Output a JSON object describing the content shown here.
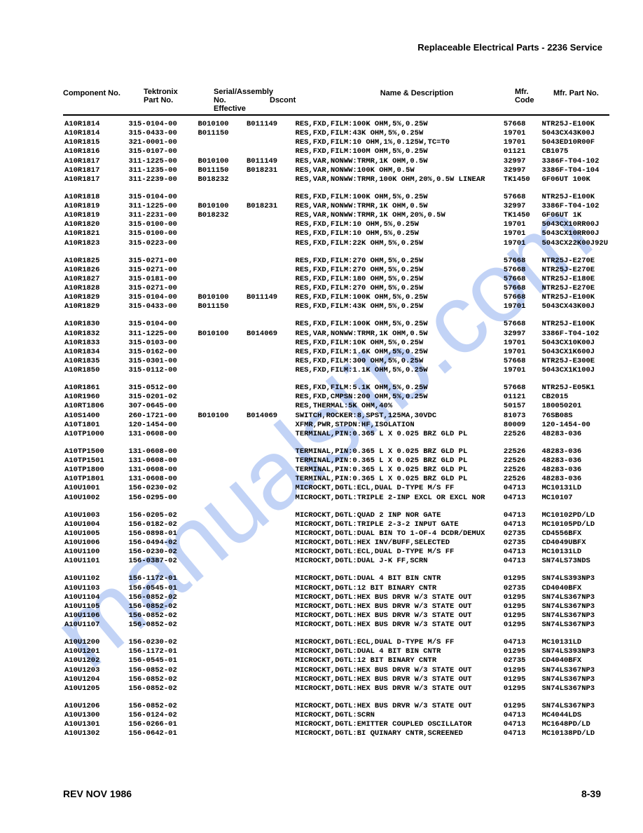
{
  "header": {
    "title": "Replaceable Electrical Parts - 2236 Service"
  },
  "columns": {
    "c1": "Component No.",
    "c2a": "Tektronix",
    "c2b": "Part No.",
    "c3a": "Serial/Assembly No.",
    "c3b": "Effective",
    "c4b": "Dscont",
    "c5": "Name & Description",
    "c6a": "Mfr.",
    "c6b": "Code",
    "c7": "Mfr. Part No."
  },
  "groups": [
    [
      [
        "A10R1814",
        "315-0104-00",
        "B010100",
        "B011149",
        "RES,FXD,FILM:100K OHM,5%,0.25W",
        "57668",
        "NTR25J-E100K"
      ],
      [
        "A10R1814",
        "315-0433-00",
        "B011150",
        "",
        "RES,FXD,FILM:43K OHM,5%,0.25W",
        "19701",
        "5043CX43K00J"
      ],
      [
        "A10R1815",
        "321-0001-00",
        "",
        "",
        "RES,FXD,FILM:10 OHM,1%,0.125W,TC=T0",
        "19701",
        "5043ED10R00F"
      ],
      [
        "A10R1816",
        "315-0107-00",
        "",
        "",
        "RES,FXD,FILM:100M OHM,5%,0.25W",
        "01121",
        "CB1075"
      ],
      [
        "A10R1817",
        "311-1225-00",
        "B010100",
        "B011149",
        "RES,VAR,NONWW:TRMR,1K OHM,0.5W",
        "32997",
        "3386F-T04-102"
      ],
      [
        "A10R1817",
        "311-1235-00",
        "B011150",
        "B018231",
        "RES,VAR,NONWW:100K OHM,0.5W",
        "32997",
        "3386F-T04-104"
      ],
      [
        "A10R1817",
        "311-2239-00",
        "B018232",
        "",
        "RES,VAR,NONWW:TRMR,100K OHM,20%,0.5W LINEAR",
        "TK1450",
        "GF06UT 100K"
      ]
    ],
    [
      [
        "A10R1818",
        "315-0104-00",
        "",
        "",
        "RES,FXD,FILM:100K OHM,5%,0.25W",
        "57668",
        "NTR25J-E100K"
      ],
      [
        "A10R1819",
        "311-1225-00",
        "B010100",
        "B018231",
        "RES,VAR,NONWW:TRMR,1K OHM,0.5W",
        "32997",
        "3386F-T04-102"
      ],
      [
        "A10R1819",
        "311-2231-00",
        "B018232",
        "",
        "RES,VAR,NONWW:TRMR,1K OHM,20%,0.5W",
        "TK1450",
        "GF06UT 1K"
      ],
      [
        "A10R1820",
        "315-0100-00",
        "",
        "",
        "RES,FXD,FILM:10 OHM,5%,0.25W",
        "19701",
        "5043CX10RR00J"
      ],
      [
        "A10R1821",
        "315-0100-00",
        "",
        "",
        "RES,FXD,FILM:10 OHM,5%,0.25W",
        "19701",
        "5043CX10RR00J"
      ],
      [
        "A10R1823",
        "315-0223-00",
        "",
        "",
        "RES,FXD,FILM:22K OHM,5%,0.25W",
        "19701",
        "5043CX22K00J92U"
      ]
    ],
    [
      [
        "A10R1825",
        "315-0271-00",
        "",
        "",
        "RES,FXD,FILM:270 OHM,5%,0.25W",
        "57668",
        "NTR25J-E270E"
      ],
      [
        "A10R1826",
        "315-0271-00",
        "",
        "",
        "RES,FXD,FILM:270 OHM,5%,0.25W",
        "57668",
        "NTR25J-E270E"
      ],
      [
        "A10R1827",
        "315-0181-00",
        "",
        "",
        "RES,FXD,FILM:180 OHM,5%,0.25W",
        "57668",
        "NTR25J-E180E"
      ],
      [
        "A10R1828",
        "315-0271-00",
        "",
        "",
        "RES,FXD,FILM:270 OHM,5%,0.25W",
        "57668",
        "NTR25J-E270E"
      ],
      [
        "A10R1829",
        "315-0104-00",
        "B010100",
        "B011149",
        "RES,FXD,FILM:100K OHM,5%,0.25W",
        "57668",
        "NTR25J-E100K"
      ],
      [
        "A10R1829",
        "315-0433-00",
        "B011150",
        "",
        "RES,FXD,FILM:43K OHM,5%,0.25W",
        "19701",
        "5043CX43K00J"
      ]
    ],
    [
      [
        "A10R1830",
        "315-0104-00",
        "",
        "",
        "RES,FXD,FILM:100K OHM,5%,0.25W",
        "57668",
        "NTR25J-E100K"
      ],
      [
        "A10R1832",
        "311-1225-00",
        "B010100",
        "B014069",
        "RES,VAR,NONWW:TRMR,1K OHM,0.5W",
        "32997",
        "3386F-T04-102"
      ],
      [
        "A10R1833",
        "315-0103-00",
        "",
        "",
        "RES,FXD,FILM:10K OHM,5%,0.25W",
        "19701",
        "5043CX10K00J"
      ],
      [
        "A10R1834",
        "315-0162-00",
        "",
        "",
        "RES,FXD,FILM:1.6K OHM,5%,0.25W",
        "19701",
        "5043CX1K600J"
      ],
      [
        "A10R1835",
        "315-0301-00",
        "",
        "",
        "RES,FXD,FILM:300 OHM,5%,0.25W",
        "57668",
        "NTR25J-E300E"
      ],
      [
        "A10R1850",
        "315-0112-00",
        "",
        "",
        "RES,FXD,FILM:1.1K OHM,5%,0.25W",
        "19701",
        "5043CX1K100J"
      ]
    ],
    [
      [
        "A10R1861",
        "315-0512-00",
        "",
        "",
        "RES,FXD,FILM:5.1K OHM,5%,0.25W",
        "57668",
        "NTR25J-E05K1"
      ],
      [
        "A10R1960",
        "315-0201-02",
        "",
        "",
        "RES,FXD,CMPSN:200 OHM,5%,0.25W",
        "01121",
        "CB2015"
      ],
      [
        "A10RT1806",
        "307-0645-00",
        "",
        "",
        "RES,THERMAL:5K OHM,40%",
        "50157",
        "180050201"
      ],
      [
        "A10S1400",
        "260-1721-00",
        "B010100",
        "B014069",
        "SWITCH,ROCKER:8,SPST,125MA,30VDC",
        "81073",
        "76SB08S"
      ],
      [
        "A10T1801",
        "120-1454-00",
        "",
        "",
        "XFMR,PWR,STPDN:HF,ISOLATION",
        "80009",
        "120-1454-00"
      ],
      [
        "A10TP1000",
        "131-0608-00",
        "",
        "",
        "TERMINAL,PIN:0.365 L X 0.025 BRZ GLD PL",
        "22526",
        "48283-036"
      ]
    ],
    [
      [
        "A10TP1500",
        "131-0608-00",
        "",
        "",
        "TERMINAL,PIN:0.365 L X 0.025 BRZ GLD PL",
        "22526",
        "48283-036"
      ],
      [
        "A10TP1501",
        "131-0608-00",
        "",
        "",
        "TERMINAL,PIN:0.365 L X 0.025 BRZ GLD PL",
        "22526",
        "48283-036"
      ],
      [
        "A10TP1800",
        "131-0608-00",
        "",
        "",
        "TERMINAL,PIN:0.365 L X 0.025 BRZ GLD PL",
        "22526",
        "48283-036"
      ],
      [
        "A10TP1801",
        "131-0608-00",
        "",
        "",
        "TERMINAL,PIN:0.365 L X 0.025 BRZ GLD PL",
        "22526",
        "48283-036"
      ],
      [
        "A10U1001",
        "156-0230-02",
        "",
        "",
        "MICROCKT,DGTL:ECL,DUAL D-TYPE M/S FF",
        "04713",
        "MC10131LD"
      ],
      [
        "A10U1002",
        "156-0295-00",
        "",
        "",
        "MICROCKT,DGTL:TRIPLE 2-INP EXCL OR EXCL NOR",
        "04713",
        "MC10107"
      ]
    ],
    [
      [
        "A10U1003",
        "156-0205-02",
        "",
        "",
        "MICROCKT,DGTL:QUAD 2 INP NOR GATE",
        "04713",
        "MC10102PD/LD"
      ],
      [
        "A10U1004",
        "156-0182-02",
        "",
        "",
        "MICROCKT,DGTL:TRIPLE 2-3-2 INPUT GATE",
        "04713",
        "MC10105PD/LD"
      ],
      [
        "A10U1005",
        "156-0898-01",
        "",
        "",
        "MICROCKT,DGTL:DUAL BIN TO 1-OF-4 DCDR/DEMUX",
        "02735",
        "CD4556BFX"
      ],
      [
        "A10U1006",
        "156-0494-02",
        "",
        "",
        "MICROCKT,DGTL:HEX INV/BUFF,SELECTED",
        "02735",
        "CD4049UBFX"
      ],
      [
        "A10U1100",
        "156-0230-02",
        "",
        "",
        "MICROCKT,DGTL:ECL,DUAL D-TYPE M/S FF",
        "04713",
        "MC10131LD"
      ],
      [
        "A10U1101",
        "156-0387-02",
        "",
        "",
        "MICROCKT,DGTL:DUAL J-K FF,SCRN",
        "04713",
        "SN74LS73NDS"
      ]
    ],
    [
      [
        "A10U1102",
        "156-1172-01",
        "",
        "",
        "MICROCKT,DGTL:DUAL 4 BIT BIN CNTR",
        "01295",
        "SN74LS393NP3"
      ],
      [
        "A10U1103",
        "156-0545-01",
        "",
        "",
        "MICROCKT,DGTL:12 BIT BINARY CNTR",
        "02735",
        "CD4040BFX"
      ],
      [
        "A10U1104",
        "156-0852-02",
        "",
        "",
        "MICROCKT,DGTL:HEX BUS DRVR W/3 STATE OUT",
        "01295",
        "SN74LS367NP3"
      ],
      [
        "A10U1105",
        "156-0852-02",
        "",
        "",
        "MICROCKT,DGTL:HEX BUS DRVR W/3 STATE OUT",
        "01295",
        "SN74LS367NP3"
      ],
      [
        "A10U1106",
        "156-0852-02",
        "",
        "",
        "MICROCKT,DGTL:HEX BUS DRVR W/3 STATE OUT",
        "01295",
        "SN74LS367NP3"
      ],
      [
        "A10U1107",
        "156-0852-02",
        "",
        "",
        "MICROCKT,DGTL:HEX BUS DRVR W/3 STATE OUT",
        "01295",
        "SN74LS367NP3"
      ]
    ],
    [
      [
        "A10U1200",
        "156-0230-02",
        "",
        "",
        "MICROCKT,DGTL:ECL,DUAL D-TYPE M/S FF",
        "04713",
        "MC10131LD"
      ],
      [
        "A10U1201",
        "156-1172-01",
        "",
        "",
        "MICROCKT,DGTL:DUAL 4 BIT BIN CNTR",
        "01295",
        "SN74LS393NP3"
      ],
      [
        "A10U1202",
        "156-0545-01",
        "",
        "",
        "MICROCKT,DGTL:12 BIT BINARY CNTR",
        "02735",
        "CD4040BFX"
      ],
      [
        "A10U1203",
        "156-0852-02",
        "",
        "",
        "MICROCKT,DGTL:HEX BUS DRVR W/3 STATE OUT",
        "01295",
        "SN74LS367NP3"
      ],
      [
        "A10U1204",
        "156-0852-02",
        "",
        "",
        "MICROCKT,DGTL:HEX BUS DRVR W/3 STATE OUT",
        "01295",
        "SN74LS367NP3"
      ],
      [
        "A10U1205",
        "156-0852-02",
        "",
        "",
        "MICROCKT,DGTL:HEX BUS DRVR W/3 STATE OUT",
        "01295",
        "SN74LS367NP3"
      ]
    ],
    [
      [
        "A10U1206",
        "156-0852-02",
        "",
        "",
        "MICROCKT,DGTL:HEX BUS DRVR W/3 STATE OUT",
        "01295",
        "SN74LS367NP3"
      ],
      [
        "A10U1300",
        "156-0124-02",
        "",
        "",
        "MICROCKT,DGTL:SCRN",
        "04713",
        "MC4044LDS"
      ],
      [
        "A10U1301",
        "156-0266-01",
        "",
        "",
        "MICROCKT,DGTL:EMITTER COUPLED OSCILLATOR",
        "04713",
        "MC1648PD/LD"
      ],
      [
        "A10U1302",
        "156-0642-01",
        "",
        "",
        "MICROCKT,DGTL:BI QUINARY CNTR,SCREENED",
        "04713",
        "MC10138PD/LD"
      ]
    ]
  ],
  "footer": {
    "left": "REV NOV 1986",
    "right": "8-39"
  },
  "watermark": "manualslib.com"
}
